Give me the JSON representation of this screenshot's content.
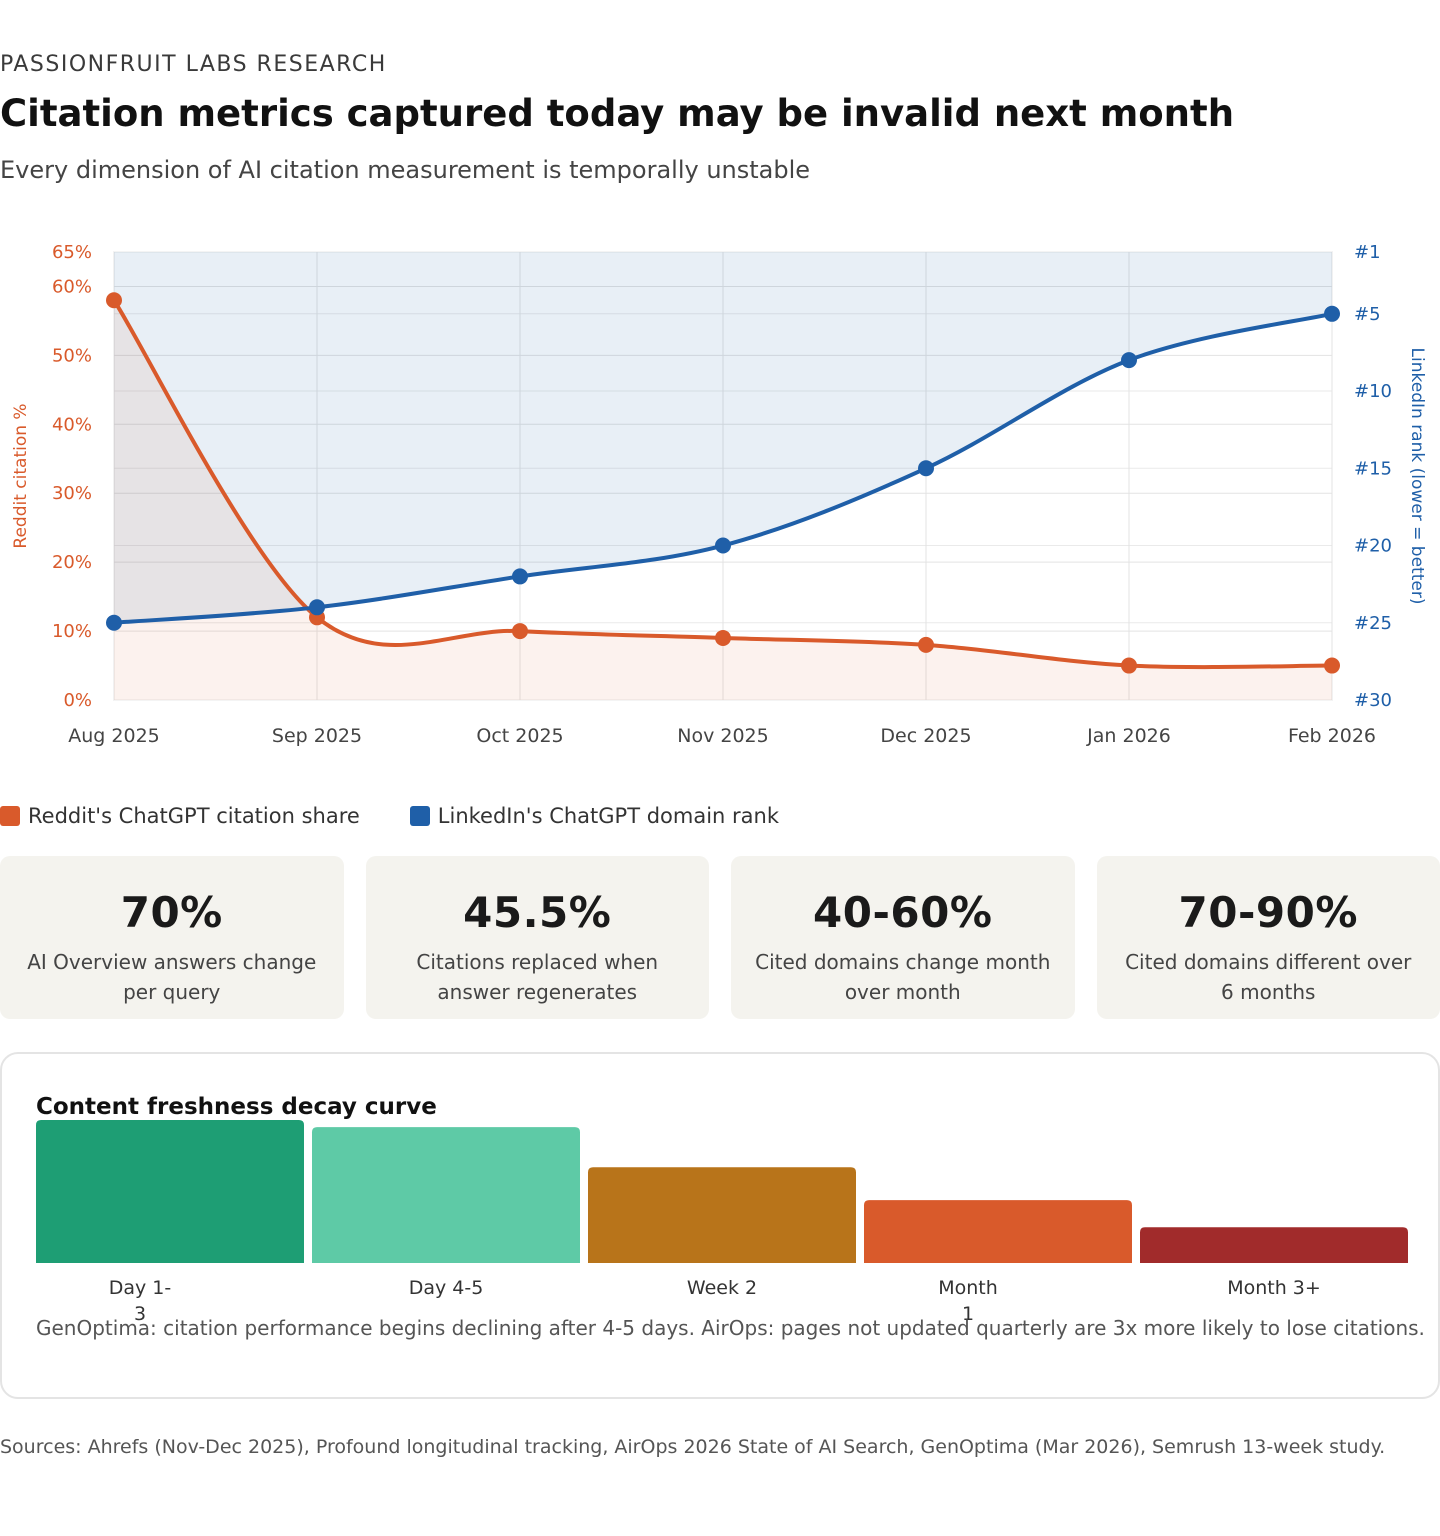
{
  "header": {
    "eyebrow": "PASSIONFRUIT LABS RESEARCH",
    "title": "Citation metrics captured today may be invalid next month",
    "subtitle": "Every dimension of AI citation measurement is temporally unstable"
  },
  "colors": {
    "reddit": "#d95a2b",
    "linkedin": "#1f5fa8",
    "card_bg": "#f4f3ee",
    "decay": [
      "#1e9e74",
      "#5ecaa6",
      "#b8741a",
      "#d95a2b",
      "#a12b2b"
    ]
  },
  "chart_data": [
    {
      "type": "line",
      "title": "",
      "categories": [
        "Aug 2025",
        "Sep 2025",
        "Oct 2025",
        "Nov 2025",
        "Dec 2025",
        "Jan 2026",
        "Feb 2026"
      ],
      "series": [
        {
          "name": "Reddit's ChatGPT citation share",
          "axis": "left",
          "values": [
            58,
            12,
            10,
            9,
            8,
            5,
            5
          ]
        },
        {
          "name": "LinkedIn's ChatGPT domain rank",
          "axis": "right",
          "values": [
            25,
            24,
            22,
            20,
            15,
            8,
            5
          ]
        }
      ],
      "ylabel_left": "Reddit citation %",
      "ylabel_right": "LinkedIn rank (lower = better)",
      "ylim_left": [
        0,
        65
      ],
      "yticks_left": [
        "0%",
        "10%",
        "20%",
        "30%",
        "40%",
        "50%",
        "60%",
        "65%"
      ],
      "yticks_left_values": [
        0,
        10,
        20,
        30,
        40,
        50,
        60,
        65
      ],
      "ylim_right": [
        30,
        1
      ],
      "yticks_right": [
        "#1",
        "#5",
        "#10",
        "#15",
        "#20",
        "#25",
        "#30"
      ],
      "yticks_right_values": [
        1,
        5,
        10,
        15,
        20,
        25,
        30
      ],
      "grid": true,
      "legend": "bottom-left"
    },
    {
      "type": "bar",
      "title": "Content freshness decay curve",
      "categories": [
        "Day 1-3",
        "Day 4-5",
        "Week 2",
        "Month 1",
        "Month 3+"
      ],
      "values": [
        100,
        95,
        67,
        44,
        25
      ],
      "ylim": [
        0,
        100
      ]
    }
  ],
  "legend": {
    "reddit": "Reddit's ChatGPT citation share",
    "linkedin": "LinkedIn's ChatGPT domain rank"
  },
  "cards": [
    {
      "value": "70%",
      "desc": "AI Overview answers change per query"
    },
    {
      "value": "45.5%",
      "desc": "Citations replaced when answer regenerates"
    },
    {
      "value": "40-60%",
      "desc": "Cited domains change month over month"
    },
    {
      "value": "70-90%",
      "desc": "Cited domains different over 6 months"
    }
  ],
  "decay": {
    "title": "Content freshness decay curve",
    "labels": [
      "Day 1-\n3",
      "Day 4-5",
      "Week 2",
      "Month\n1",
      "Month 3+"
    ],
    "note": "GenOptima: citation performance begins declining after 4-5 days. AirOps: pages not updated quarterly are 3x more likely to lose citations."
  },
  "footer": {
    "sources": "Sources: Ahrefs (Nov-Dec 2025), Profound longitudinal tracking, AirOps 2026 State of AI Search, GenOptima (Mar 2026), Semrush 13-week study."
  }
}
